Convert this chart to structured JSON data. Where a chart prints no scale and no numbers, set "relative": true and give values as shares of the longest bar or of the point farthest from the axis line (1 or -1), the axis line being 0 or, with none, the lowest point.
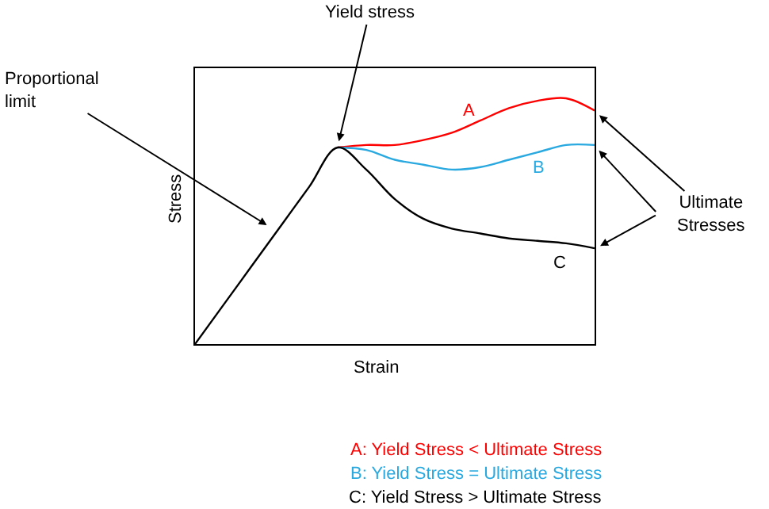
{
  "chart_data": {
    "type": "line",
    "relative": true,
    "xlabel": "Strain",
    "ylabel": "Stress",
    "tick_labels": false,
    "legend": false,
    "marker": "none",
    "line_style": "solid",
    "categories": [
      null,
      null,
      null,
      null,
      null,
      null,
      null,
      null,
      null,
      null,
      null,
      null,
      null,
      null,
      null
    ],
    "series": [
      {
        "name": "A",
        "color": "#ff0000",
        "values": [
          null,
          null,
          null,
          null,
          null,
          0.8,
          0.81,
          0.81,
          0.83,
          0.86,
          0.91,
          0.96,
          0.99,
          1.0,
          0.95
        ]
      },
      {
        "name": "B",
        "color": "#29a9e0",
        "values": [
          null,
          null,
          null,
          null,
          null,
          0.8,
          0.79,
          0.75,
          0.73,
          0.71,
          0.72,
          0.75,
          0.78,
          0.81,
          0.81
        ]
      },
      {
        "name": "C",
        "color": "#000000",
        "values": [
          0,
          0.16,
          0.32,
          0.48,
          0.64,
          0.8,
          0.71,
          0.59,
          0.51,
          0.47,
          0.45,
          0.43,
          0.42,
          0.41,
          0.39
        ]
      }
    ],
    "annotations": [
      "Yield stress",
      "Proportional limit",
      "Ultimate Stresses",
      "A: Yield Stress < Ultimate Stress",
      "B: Yield Stress = Ultimate Stress",
      "C: Yield Stress > Ultimate Stress"
    ]
  }
}
